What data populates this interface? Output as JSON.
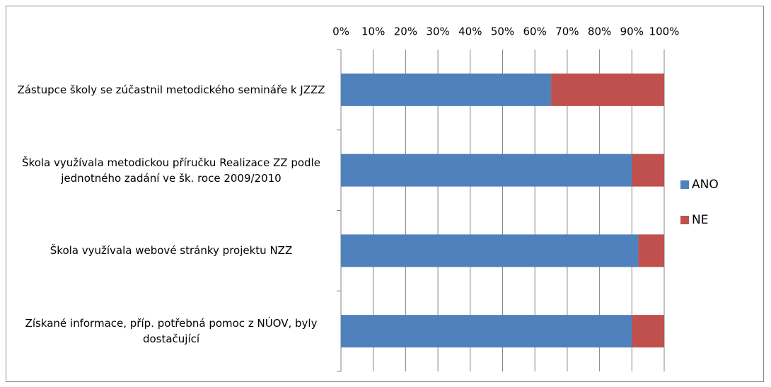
{
  "chart_data": {
    "type": "stacked_barh",
    "categories": [
      "Zástupce školy se zúčastnil metodického semináře k JZZZ",
      "Škola využívala metodickou příručku Realizace ZZ podle jednotného zadání ve šk. roce 2009/2010",
      "Škola využívala webové stránky projektu NZZ",
      "Získané informace, příp. potřebná pomoc z NÚOV, byly dostačující"
    ],
    "series": [
      {
        "name": "ANO",
        "color": "#4f81bd",
        "values": [
          65,
          90,
          92,
          90
        ]
      },
      {
        "name": "NE",
        "color": "#c0504d",
        "values": [
          35,
          10,
          8,
          10
        ]
      }
    ],
    "xlim": [
      0,
      100
    ],
    "xticks": [
      {
        "value": 0,
        "label": "0%"
      },
      {
        "value": 10,
        "label": "10%"
      },
      {
        "value": 20,
        "label": "20%"
      },
      {
        "value": 30,
        "label": "30%"
      },
      {
        "value": 40,
        "label": "40%"
      },
      {
        "value": 50,
        "label": "50%"
      },
      {
        "value": 60,
        "label": "60%"
      },
      {
        "value": 70,
        "label": "70%"
      },
      {
        "value": 80,
        "label": "80%"
      },
      {
        "value": 90,
        "label": "90%"
      },
      {
        "value": 100,
        "label": "100%"
      }
    ],
    "grid": true,
    "legend": "right"
  }
}
